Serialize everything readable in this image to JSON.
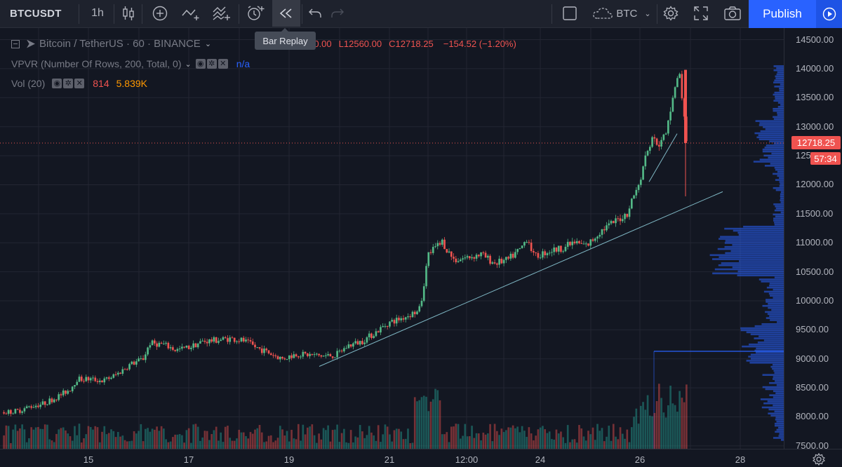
{
  "toolbar": {
    "symbol": "BTCUSDT",
    "interval": "1h",
    "compare_label": "BTC",
    "publish_label": "Publish"
  },
  "tooltip": "Bar Replay",
  "legend": {
    "main_prefix": "Bitcoin / TetherUS · 60 · BINANCE",
    "high": "H12940.00",
    "low": "L12560.00",
    "close": "C12718.25",
    "change": "−154.52 (−1.20%)",
    "vpvr_label": "VPVR (Number Of Rows, 200, Total, 0)",
    "vpvr_value": "n/a",
    "vol_label": "Vol (20)",
    "vol_value1": "814",
    "vol_value2": "5.839K"
  },
  "price_axis": {
    "labels": [
      "14500.00",
      "14000.00",
      "13500.00",
      "13000.00",
      "12500.00",
      "12000.00",
      "11500.00",
      "11000.00",
      "10500.00",
      "10000.00",
      "9500.00",
      "9000.00",
      "8500.00",
      "8000.00",
      "7500.00"
    ],
    "last_price": "12718.25",
    "countdown": "57:34"
  },
  "time_axis": {
    "labels": [
      "15",
      "17",
      "19",
      "21",
      "12:00",
      "24",
      "26",
      "28"
    ]
  },
  "colors": {
    "up": "#26a69a",
    "up_candle": "#53b987",
    "down": "#ef5350",
    "background": "#131722",
    "accent": "#2962ff",
    "grid": "#232632"
  },
  "chart_data": {
    "type": "candlestick",
    "interval": "1h",
    "ylim": [
      7450,
      14700
    ],
    "x_ticks": [
      "15",
      "17",
      "19",
      "21",
      "12:00",
      "24",
      "26",
      "28"
    ],
    "close_path": [
      [
        0,
        8080
      ],
      [
        2,
        8100
      ],
      [
        4,
        8180
      ],
      [
        6,
        8230
      ],
      [
        8,
        8340
      ],
      [
        10,
        8480
      ],
      [
        11,
        8650
      ],
      [
        13,
        8650
      ],
      [
        15,
        8620
      ],
      [
        17,
        8730
      ],
      [
        19,
        8900
      ],
      [
        21,
        9000
      ],
      [
        22,
        9270
      ],
      [
        24,
        9250
      ],
      [
        26,
        9150
      ],
      [
        28,
        9200
      ],
      [
        30,
        9300
      ],
      [
        32,
        9320
      ],
      [
        34,
        9350
      ],
      [
        36,
        9320
      ],
      [
        38,
        9200
      ],
      [
        40,
        9100
      ],
      [
        42,
        9000
      ],
      [
        44,
        9080
      ],
      [
        46,
        9070
      ],
      [
        48,
        9050
      ],
      [
        50,
        9060
      ],
      [
        52,
        9230
      ],
      [
        54,
        9300
      ],
      [
        56,
        9450
      ],
      [
        58,
        9620
      ],
      [
        60,
        9700
      ],
      [
        62,
        9800
      ],
      [
        63,
        10000
      ],
      [
        64,
        10800
      ],
      [
        65,
        10900
      ],
      [
        66,
        11050
      ],
      [
        67,
        10850
      ],
      [
        68,
        10700
      ],
      [
        70,
        10750
      ],
      [
        72,
        10800
      ],
      [
        74,
        10650
      ],
      [
        76,
        10700
      ],
      [
        78,
        10900
      ],
      [
        79,
        11100
      ],
      [
        80,
        10750
      ],
      [
        82,
        10850
      ],
      [
        84,
        10900
      ],
      [
        86,
        11000
      ],
      [
        88,
        10950
      ],
      [
        90,
        11200
      ],
      [
        92,
        11350
      ],
      [
        94,
        11500
      ],
      [
        95,
        11800
      ],
      [
        96,
        12100
      ],
      [
        97,
        12600
      ],
      [
        98,
        12800
      ],
      [
        99,
        12700
      ],
      [
        100,
        12900
      ],
      [
        101,
        13600
      ],
      [
        102,
        13900
      ],
      [
        103,
        12718
      ]
    ],
    "trendline": {
      "from": [
        "19",
        8900
      ],
      "to": [
        "28",
        11880
      ]
    },
    "last_price": 12718.25,
    "volume_profile": "VPVR horizontal histogram along price axis",
    "volume": "Vol (20) bars at bottom"
  }
}
